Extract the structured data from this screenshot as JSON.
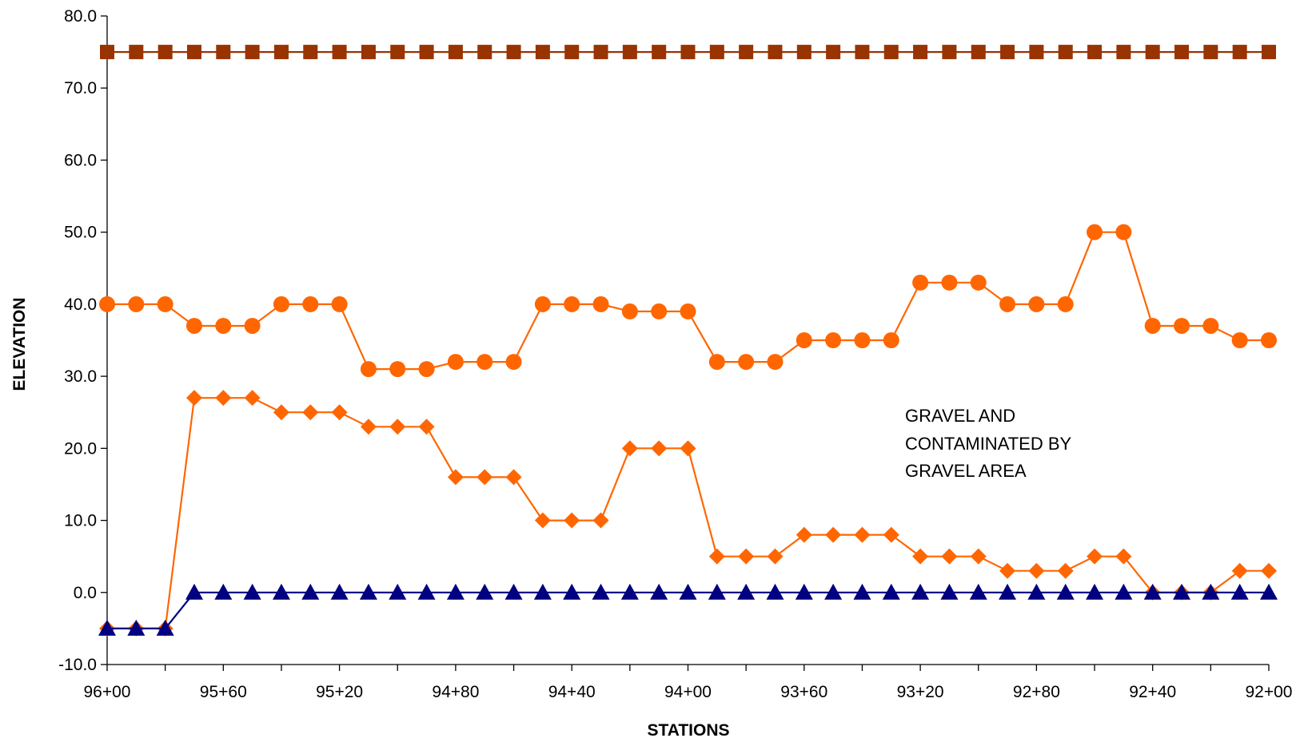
{
  "chart_data": {
    "type": "line",
    "xlabel": "STATIONS",
    "ylabel": "ELEVATION",
    "ylim": [
      -10,
      80
    ],
    "ytick_step": 10,
    "ytick_labels": [
      "-10.0",
      "0.0",
      "10.0",
      "20.0",
      "30.0",
      "40.0",
      "50.0",
      "60.0",
      "70.0",
      "80.0"
    ],
    "x": [
      9600,
      9590,
      9580,
      9570,
      9560,
      9550,
      9540,
      9530,
      9520,
      9510,
      9500,
      9490,
      9480,
      9470,
      9460,
      9450,
      9440,
      9430,
      9420,
      9410,
      9400,
      9390,
      9380,
      9370,
      9360,
      9350,
      9340,
      9330,
      9320,
      9310,
      9300,
      9290,
      9280,
      9270,
      9260,
      9250,
      9240,
      9230,
      9220,
      9210,
      9200
    ],
    "xtick_labels": [
      "96+00",
      "95+60",
      "95+20",
      "94+80",
      "94+40",
      "94+00",
      "93+60",
      "93+20",
      "92+80",
      "92+40",
      "92+00"
    ],
    "grid": false,
    "legend": "none",
    "annotation": [
      "GRAVEL AND",
      "CONTAMINATED BY",
      "GRAVEL AREA"
    ],
    "series": [
      {
        "marker": "square",
        "color": "#993300",
        "values": [
          75,
          75,
          75,
          75,
          75,
          75,
          75,
          75,
          75,
          75,
          75,
          75,
          75,
          75,
          75,
          75,
          75,
          75,
          75,
          75,
          75,
          75,
          75,
          75,
          75,
          75,
          75,
          75,
          75,
          75,
          75,
          75,
          75,
          75,
          75,
          75,
          75,
          75,
          75,
          75,
          75
        ]
      },
      {
        "marker": "circle",
        "color": "#FF6600",
        "values": [
          40,
          40,
          40,
          37,
          37,
          37,
          40,
          40,
          40,
          31,
          31,
          31,
          32,
          32,
          32,
          40,
          40,
          40,
          39,
          39,
          39,
          32,
          32,
          32,
          35,
          35,
          35,
          35,
          43,
          43,
          43,
          40,
          40,
          40,
          50,
          50,
          37,
          37,
          37,
          35,
          35
        ]
      },
      {
        "marker": "diamond",
        "color": "#FF6600",
        "values": [
          -5,
          -5,
          -5,
          27,
          27,
          27,
          25,
          25,
          25,
          23,
          23,
          23,
          16,
          16,
          16,
          10,
          10,
          10,
          20,
          20,
          20,
          5,
          5,
          5,
          8,
          8,
          8,
          8,
          5,
          5,
          5,
          3,
          3,
          3,
          5,
          5,
          0,
          0,
          0,
          3,
          3
        ]
      },
      {
        "marker": "triangle",
        "color": "#000080",
        "values": [
          -5,
          -5,
          -5,
          0,
          0,
          0,
          0,
          0,
          0,
          0,
          0,
          0,
          0,
          0,
          0,
          0,
          0,
          0,
          0,
          0,
          0,
          0,
          0,
          0,
          0,
          0,
          0,
          0,
          0,
          0,
          0,
          0,
          0,
          0,
          0,
          0,
          0,
          0,
          0,
          0,
          0
        ]
      }
    ]
  }
}
